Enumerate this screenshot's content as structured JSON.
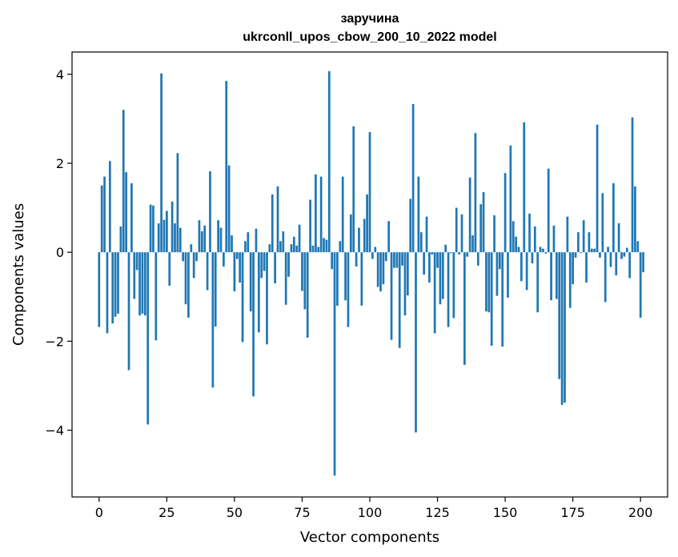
{
  "chart_data": {
    "type": "bar",
    "title": "заручина",
    "subtitle": "ukrconll_upos_cbow_200_10_2022 model",
    "xlabel": "Vector components",
    "ylabel": "Components values",
    "xlim": [
      -10,
      210
    ],
    "ylim": [
      -5.5,
      4.5
    ],
    "xticks": [
      0,
      25,
      50,
      75,
      100,
      125,
      150,
      175,
      200
    ],
    "yticks": [
      -4,
      -2,
      0,
      2,
      4
    ],
    "bar_color": "#1f77b4",
    "grid": false,
    "values": [
      -1.68,
      1.5,
      1.7,
      -1.82,
      2.05,
      -1.6,
      -1.45,
      -1.38,
      0.58,
      3.2,
      1.8,
      -2.65,
      1.55,
      -1.05,
      -0.4,
      -1.42,
      -1.38,
      -1.42,
      -3.87,
      1.07,
      1.05,
      -1.98,
      0.65,
      4.02,
      0.73,
      0.93,
      -0.75,
      1.14,
      0.65,
      2.23,
      0.55,
      -0.2,
      -1.17,
      -1.47,
      0.18,
      -0.58,
      -0.2,
      0.72,
      0.47,
      0.6,
      -0.85,
      1.82,
      -3.04,
      -1.67,
      0.72,
      0.55,
      -0.32,
      3.85,
      1.95,
      0.38,
      -0.88,
      -0.15,
      -0.68,
      -2.02,
      0.25,
      0.45,
      -1.33,
      -3.24,
      0.53,
      -1.8,
      -0.58,
      -0.42,
      -2.07,
      0.18,
      1.3,
      -0.7,
      1.48,
      0.25,
      0.47,
      -1.18,
      -0.55,
      0.18,
      0.35,
      0.15,
      0.62,
      -0.87,
      -1.28,
      -1.92,
      1.18,
      0.15,
      1.75,
      0.12,
      1.7,
      0.32,
      0.28,
      4.07,
      -0.38,
      -5.02,
      -1.2,
      0.25,
      1.7,
      -1.08,
      -1.68,
      0.85,
      2.83,
      -0.32,
      0.55,
      -1.2,
      0.75,
      1.3,
      2.7,
      -0.15,
      0.12,
      -0.78,
      -0.88,
      -0.72,
      -0.2,
      0.7,
      -1.97,
      -0.35,
      -0.35,
      -2.15,
      -0.3,
      -1.42,
      -0.97,
      1.2,
      3.33,
      -4.05,
      1.7,
      0.45,
      -0.5,
      0.8,
      -0.68,
      -0.05,
      -1.82,
      -0.35,
      -1.17,
      -1.05,
      0.17,
      -1.68,
      -0.02,
      -1.48,
      1.0,
      -0.05,
      0.85,
      -2.53,
      -0.1,
      1.68,
      0.38,
      2.68,
      -0.3,
      1.08,
      1.35,
      -1.33,
      -1.35,
      -2.1,
      0.83,
      -0.98,
      -0.38,
      -2.12,
      1.78,
      -1.02,
      2.4,
      0.7,
      0.35,
      0.12,
      -0.65,
      2.92,
      -0.85,
      0.87,
      -0.25,
      0.58,
      -1.35,
      0.12,
      0.08,
      -0.03,
      1.88,
      -1.08,
      0.6,
      -1.05,
      -2.85,
      -3.43,
      -3.38,
      0.8,
      -1.25,
      -0.72,
      -0.12,
      0.45,
      -0.02,
      0.72,
      -0.68,
      0.45,
      0.08,
      0.08,
      2.87,
      -0.12,
      1.33,
      -1.12,
      0.12,
      -0.33,
      1.55,
      -0.52,
      0.65,
      -0.15,
      -0.1,
      0.1,
      -0.58,
      3.03,
      1.48,
      0.25,
      -1.47,
      -0.45
    ]
  }
}
